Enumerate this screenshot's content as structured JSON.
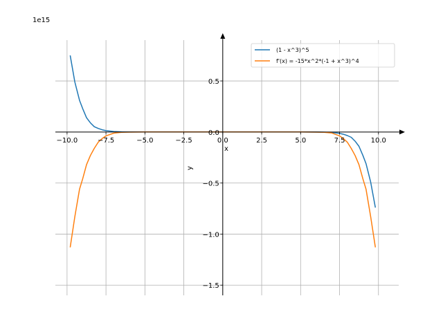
{
  "chart_data": {
    "type": "line",
    "title": "",
    "xlabel": "x",
    "ylabel": "y",
    "y_offset_text": "1e15",
    "y_scale_factor": 1000000000000000.0,
    "xlim": [
      -10.75,
      11.3
    ],
    "ylim": [
      -1600000000000000.0,
      900000000000000.0
    ],
    "grid": true,
    "legend_position": "upper right",
    "x_ticks": [
      -10.0,
      -7.5,
      -5.0,
      -2.5,
      0.0,
      2.5,
      5.0,
      7.5,
      10.0
    ],
    "x_tick_labels": [
      "−10.0",
      "−7.5",
      "−5.0",
      "−2.5",
      "0.0",
      "2.5",
      "5.0",
      "7.5",
      "10.0"
    ],
    "y_ticks": [
      -1500000000000000.0,
      -1000000000000000.0,
      -500000000000000.0,
      0.0,
      500000000000000.0
    ],
    "y_tick_labels": [
      "−1.5",
      "−1.0",
      "−0.5",
      "0.0",
      "0.5"
    ],
    "series": [
      {
        "name": "(1 - x^3)^5",
        "color": "#1f77b4",
        "x": [
          -9.8,
          -9.5,
          -9.2,
          -9.0,
          -8.75,
          -8.5,
          -8.25,
          -8.0,
          -7.75,
          -7.5,
          -7.0,
          -6.5,
          -6.0,
          -5.0,
          -4.0,
          -2.0,
          0.0,
          2.0,
          4.0,
          5.0,
          6.0,
          6.5,
          7.0,
          7.5,
          7.75,
          8.0,
          8.25,
          8.5,
          8.75,
          9.0,
          9.2,
          9.5,
          9.8
        ],
        "y": [
          750000000000000.0,
          490000000000000.0,
          310000000000000.0,
          230000000000000.0,
          140000000000000.0,
          90000000000000.0,
          52000000000000.0,
          35000000000000.0,
          22000000000000.0,
          13000000000000.0,
          4700000000000.0,
          1500000000000.0,
          470000000000.0,
          31000000000.0,
          1100000000.0,
          33000.0,
          1,
          -17000.0,
          -990000000.0,
          -30000000000.0,
          -470000000000.0,
          -1500000000000.0,
          -4700000000000.0,
          -13000000000000.0,
          -22000000000000.0,
          -35000000000000.0,
          -52000000000000.0,
          -90000000000000.0,
          -140000000000000.0,
          -230000000000000.0,
          -310000000000000.0,
          -490000000000000.0,
          -740000000000000.0
        ]
      },
      {
        "name": "f'(x) = -15*x^2*(-1 + x^3)^4",
        "color": "#ff7f0e",
        "x": [
          -9.8,
          -9.5,
          -9.2,
          -9.0,
          -8.75,
          -8.5,
          -8.25,
          -8.0,
          -7.75,
          -7.5,
          -7.0,
          -6.5,
          -6.0,
          -5.0,
          -4.0,
          -2.0,
          0.0,
          2.0,
          4.0,
          5.0,
          6.0,
          6.5,
          7.0,
          7.5,
          7.75,
          8.0,
          8.25,
          8.5,
          8.75,
          9.0,
          9.2,
          9.5,
          9.8
        ],
        "y": [
          -1130000000000000.0,
          -830000000000000.0,
          -560000000000000.0,
          -460000000000000.0,
          -320000000000000.0,
          -230000000000000.0,
          -160000000000000.0,
          -100000000000000.0,
          -65000000000000.0,
          -38000000000000.0,
          -11000000000000.0,
          -3200000000000.0,
          -900000000000.0,
          -47000000000.0,
          -1200000000.0,
          -14000.0,
          0,
          -7200.0,
          -900000000.0,
          -44000000000.0,
          -800000000000.0,
          -3000000000000.0,
          -10000000000000.0,
          -38000000000000.0,
          -65000000000000.0,
          -100000000000000.0,
          -160000000000000.0,
          -230000000000000.0,
          -320000000000000.0,
          -460000000000000.0,
          -560000000000000.0,
          -830000000000000.0,
          -1130000000000000.0
        ]
      }
    ]
  }
}
